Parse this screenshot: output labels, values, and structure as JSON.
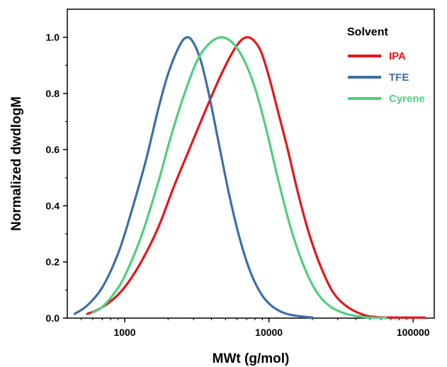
{
  "chart_data": {
    "type": "line",
    "xlabel": "MWt (g/mol)",
    "ylabel": "Normalized dwdlogM",
    "xscale": "log",
    "xlim": [
      400,
      140000
    ],
    "ylim": [
      0,
      1.1
    ],
    "x_ticks": [
      1000,
      10000,
      100000
    ],
    "x_tick_labels": [
      "1000",
      "10000",
      "100000"
    ],
    "y_ticks": [
      0.0,
      0.2,
      0.4,
      0.6,
      0.8,
      1.0
    ],
    "y_tick_labels": [
      "0.0",
      "0.2",
      "0.4",
      "0.6",
      "0.8",
      "1.0"
    ],
    "legend": {
      "title": "Solvent",
      "position": "top-right"
    },
    "series": [
      {
        "name": "IPA",
        "color": "#e8141a",
        "points": [
          [
            550,
            0.015
          ],
          [
            650,
            0.03
          ],
          [
            800,
            0.06
          ],
          [
            1000,
            0.11
          ],
          [
            1300,
            0.2
          ],
          [
            1700,
            0.32
          ],
          [
            2200,
            0.47
          ],
          [
            2800,
            0.6
          ],
          [
            3500,
            0.72
          ],
          [
            4500,
            0.85
          ],
          [
            5500,
            0.94
          ],
          [
            6300,
            0.985
          ],
          [
            7000,
            1.0
          ],
          [
            7800,
            0.99
          ],
          [
            8800,
            0.95
          ],
          [
            10000,
            0.86
          ],
          [
            11500,
            0.74
          ],
          [
            13500,
            0.6
          ],
          [
            16000,
            0.44
          ],
          [
            19000,
            0.3
          ],
          [
            23000,
            0.18
          ],
          [
            28000,
            0.09
          ],
          [
            35000,
            0.04
          ],
          [
            45000,
            0.012
          ],
          [
            55000,
            0.004
          ],
          [
            70000,
            0.002
          ],
          [
            120000,
            0.002
          ]
        ]
      },
      {
        "name": "TFE",
        "color": "#3d6ea5",
        "points": [
          [
            450,
            0.015
          ],
          [
            550,
            0.045
          ],
          [
            700,
            0.11
          ],
          [
            900,
            0.23
          ],
          [
            1100,
            0.37
          ],
          [
            1400,
            0.56
          ],
          [
            1700,
            0.74
          ],
          [
            2000,
            0.87
          ],
          [
            2400,
            0.97
          ],
          [
            2700,
            1.0
          ],
          [
            3000,
            0.98
          ],
          [
            3400,
            0.91
          ],
          [
            3900,
            0.78
          ],
          [
            4500,
            0.62
          ],
          [
            5300,
            0.44
          ],
          [
            6300,
            0.28
          ],
          [
            7500,
            0.16
          ],
          [
            9000,
            0.08
          ],
          [
            11000,
            0.035
          ],
          [
            14000,
            0.012
          ],
          [
            20000,
            0.002
          ]
        ]
      },
      {
        "name": "Cyrene",
        "color": "#4dcf82",
        "points": [
          [
            600,
            0.02
          ],
          [
            700,
            0.04
          ],
          [
            850,
            0.09
          ],
          [
            1000,
            0.15
          ],
          [
            1300,
            0.29
          ],
          [
            1700,
            0.48
          ],
          [
            2100,
            0.65
          ],
          [
            2600,
            0.8
          ],
          [
            3200,
            0.92
          ],
          [
            3900,
            0.98
          ],
          [
            4700,
            1.0
          ],
          [
            5600,
            0.98
          ],
          [
            6700,
            0.92
          ],
          [
            8000,
            0.82
          ],
          [
            9500,
            0.68
          ],
          [
            11500,
            0.5
          ],
          [
            14000,
            0.33
          ],
          [
            17000,
            0.2
          ],
          [
            21000,
            0.1
          ],
          [
            26000,
            0.045
          ],
          [
            33000,
            0.018
          ],
          [
            42000,
            0.006
          ],
          [
            50000,
            0.002
          ],
          [
            65000,
            0.001
          ]
        ]
      }
    ]
  }
}
